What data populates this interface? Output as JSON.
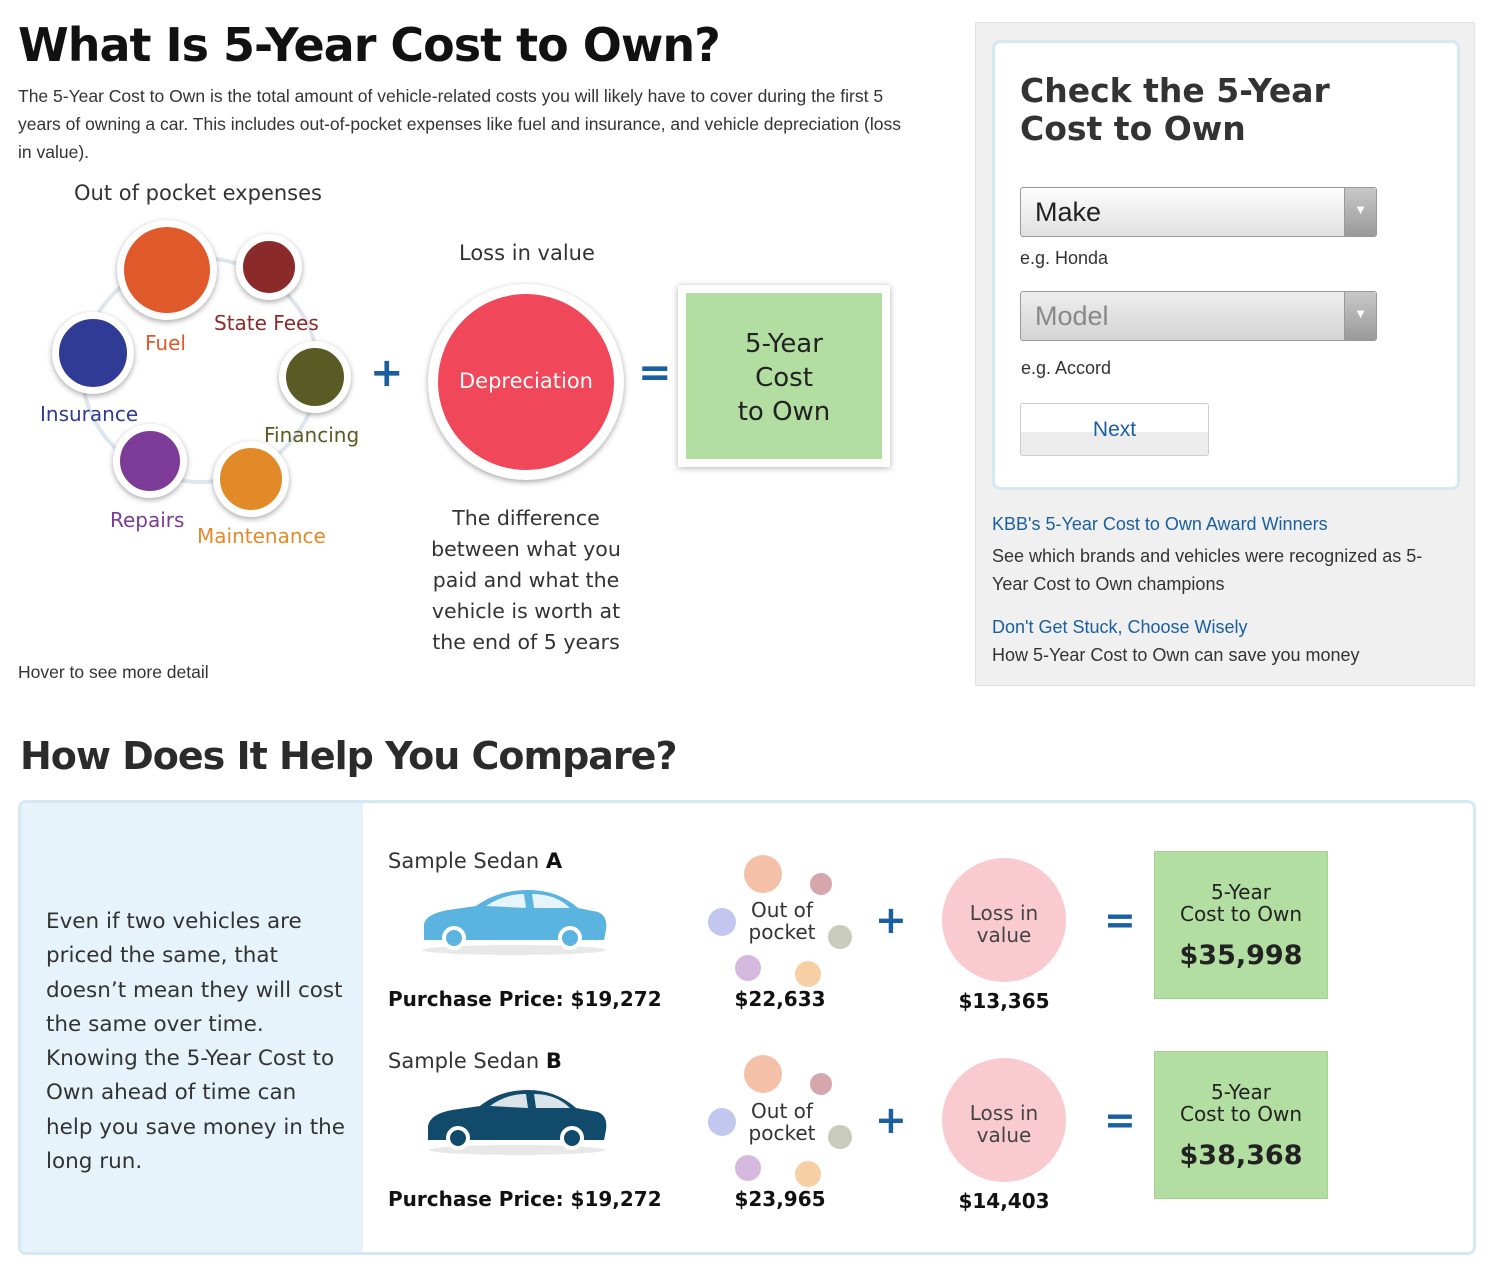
{
  "intro": {
    "title": "What Is 5-Year Cost to Own?",
    "description": "The 5-Year Cost to Own is the total amount of vehicle-related costs you will likely have to cover during the first 5 years of owning a car. This includes out-of-pocket expenses like fuel and insurance, and vehicle depreciation (loss in value).",
    "out_of_pocket_label": "Out of pocket expenses",
    "loss_label": "Loss in value",
    "expenses": [
      {
        "label": "Fuel",
        "color": "#e0592a"
      },
      {
        "label": "State Fees",
        "color": "#8b2a2a"
      },
      {
        "label": "Financing",
        "color": "#5a5a24"
      },
      {
        "label": "Maintenance",
        "color": "#e38a28"
      },
      {
        "label": "Repairs",
        "color": "#7b3b97"
      },
      {
        "label": "Insurance",
        "color": "#2f3b94"
      }
    ],
    "plus": "+",
    "equals": "=",
    "depreciation_label": "Depreciation",
    "depreciation_color": "#f0485a",
    "result_box": "5-Year\nCost\nto Own",
    "depreciation_note": "The difference between what you paid and what the vehicle is worth at the end of 5 years",
    "hover_hint": "Hover to see more detail"
  },
  "sidebar": {
    "title": "Check the 5-Year Cost to Own",
    "make": {
      "value": "Make",
      "hint": "e.g. Honda"
    },
    "model": {
      "value": "Model",
      "hint": "e.g. Accord"
    },
    "next_label": "Next",
    "links": [
      {
        "title": "KBB's 5-Year Cost to Own Award Winners",
        "desc": "See which brands and vehicles were recognized as 5-Year Cost to Own champions"
      },
      {
        "title": "Don't Get Stuck, Choose Wisely",
        "desc": "How 5-Year Cost to Own can save you money"
      }
    ]
  },
  "compare": {
    "title": "How Does It Help You Compare?",
    "left_text": "Even if two vehicles are priced the same, that doesn’t mean they will cost the same over time. Knowing the 5-Year Cost to Own ahead of time can help you save money in the long run.",
    "out_label": "Out of\npocket",
    "loss_label": "Loss in\nvalue",
    "result_label": "5-Year\nCost to Own",
    "plus": "+",
    "equals": "=",
    "sedans": [
      {
        "name": "Sample Sedan ",
        "letter": "A",
        "price": "Purchase Price: $19,272",
        "out_of_pocket": "$22,633",
        "loss": "$13,365",
        "total": "$35,998",
        "car_color": "#5bb3e0"
      },
      {
        "name": "Sample Sedan ",
        "letter": "B",
        "price": "Purchase Price: $19,272",
        "out_of_pocket": "$23,965",
        "loss": "$14,403",
        "total": "$38,368",
        "car_color": "#124a6b"
      }
    ]
  }
}
